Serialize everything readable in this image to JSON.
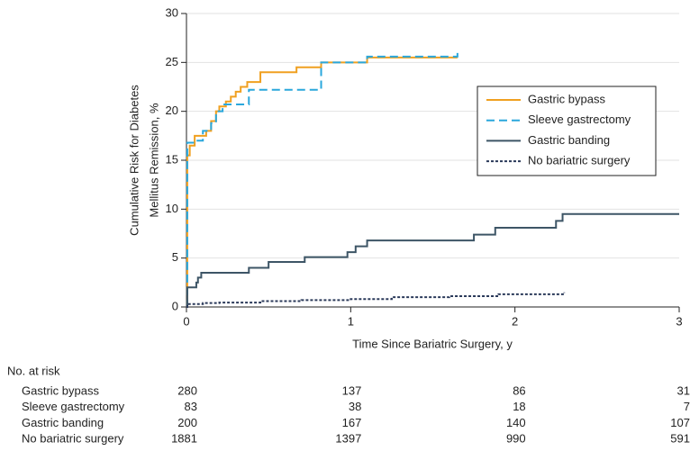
{
  "chart_data": {
    "type": "step",
    "ylabel": [
      "Cumulative Risk for Diabetes",
      "Mellitus Remission, %"
    ],
    "xlabel": "Time Since Bariatric Surgery, y",
    "xlim": [
      0,
      3
    ],
    "xticks": [
      0,
      1,
      2,
      3
    ],
    "ylim": [
      0,
      30
    ],
    "yticks": [
      0,
      5,
      10,
      15,
      20,
      25,
      30
    ],
    "grid": true,
    "legend": "right",
    "series": [
      {
        "name": "Gastric bypass",
        "color": "#f0a020",
        "dash": "solid",
        "x": [
          0,
          0.005,
          0.02,
          0.05,
          0.12,
          0.15,
          0.18,
          0.2,
          0.24,
          0.27,
          0.3,
          0.33,
          0.37,
          0.45,
          0.67,
          0.82,
          1.1,
          1.65
        ],
        "values": [
          0,
          15.5,
          16.5,
          17.5,
          18,
          19,
          20,
          20.5,
          21,
          21.5,
          22,
          22.5,
          23,
          24,
          24.5,
          25,
          25.5,
          25.5
        ]
      },
      {
        "name": "Sleeve gastrectomy",
        "color": "#2aa7dc",
        "dash": "dashed",
        "x": [
          0,
          0.005,
          0.05,
          0.1,
          0.15,
          0.18,
          0.22,
          0.38,
          0.82,
          1.1,
          1.65
        ],
        "values": [
          0,
          16.8,
          17,
          18,
          18.8,
          20,
          20.7,
          22.2,
          25,
          25.6,
          26.3
        ]
      },
      {
        "name": "Gastric banding",
        "color": "#3d5566",
        "dash": "solid",
        "x": [
          0,
          0.005,
          0.06,
          0.07,
          0.09,
          0.38,
          0.5,
          0.72,
          0.98,
          1.03,
          1.1,
          1.75,
          1.88,
          2.25,
          2.29,
          3
        ],
        "values": [
          0,
          2,
          2.5,
          3,
          3.5,
          4,
          4.6,
          5.1,
          5.6,
          6.2,
          6.8,
          7.4,
          8.1,
          8.8,
          9.5,
          9.5
        ]
      },
      {
        "name": "No bariatric surgery",
        "color": "#2b3a5a",
        "dash": "dotted",
        "x": [
          0,
          0.005,
          0.1,
          0.2,
          0.45,
          0.7,
          1.0,
          1.25,
          1.6,
          1.9,
          2.3
        ],
        "values": [
          0,
          0.3,
          0.4,
          0.45,
          0.6,
          0.7,
          0.8,
          1.0,
          1.1,
          1.3,
          1.5
        ]
      }
    ],
    "risk_table": {
      "title": "No. at risk",
      "rows": [
        {
          "name": "Gastric bypass",
          "values": [
            280,
            137,
            86,
            31
          ]
        },
        {
          "name": "Sleeve gastrectomy",
          "values": [
            83,
            38,
            18,
            7
          ]
        },
        {
          "name": "Gastric banding",
          "values": [
            200,
            167,
            140,
            107
          ]
        },
        {
          "name": "No bariatric surgery",
          "values": [
            1881,
            1397,
            990,
            591
          ]
        }
      ]
    }
  }
}
